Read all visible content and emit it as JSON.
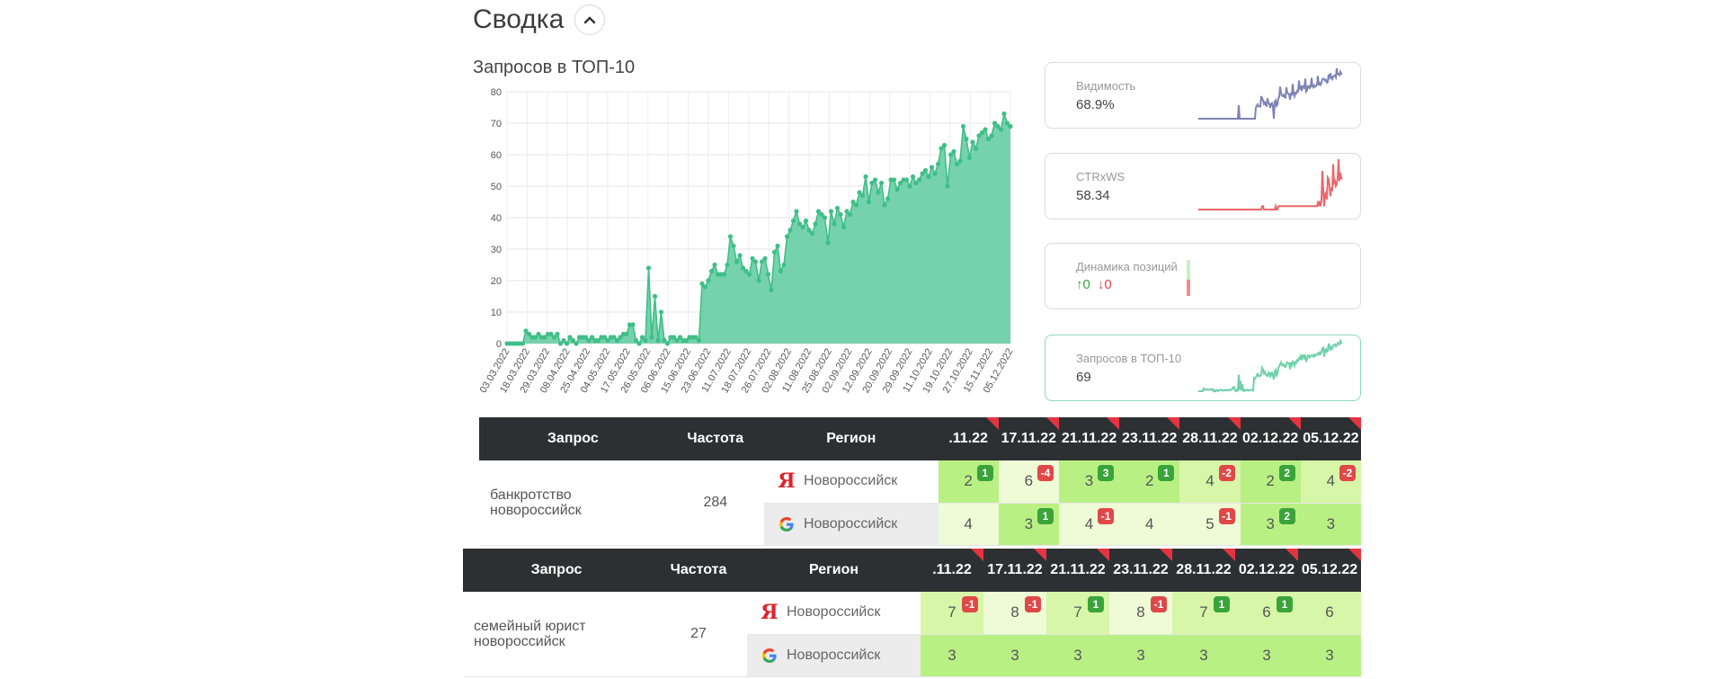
{
  "summary": {
    "title": "Сводка"
  },
  "chart_data": {
    "type": "area",
    "title": "Запросов в ТОП-10",
    "ylim": [
      0,
      80
    ],
    "yticks": [
      0,
      10,
      20,
      30,
      40,
      50,
      60,
      70,
      80
    ],
    "xticks": [
      "03.03.2022",
      "18.03.2022",
      "29.03.2022",
      "08.04.2022",
      "25.04.2022",
      "04.05.2022",
      "17.05.2022",
      "26.05.2022",
      "06.06.2022",
      "15.06.2022",
      "23.06.2022",
      "11.07.2022",
      "18.07.2022",
      "26.07.2022",
      "02.08.2022",
      "11.08.2022",
      "25.08.2022",
      "02.09.2022",
      "12.09.2022",
      "20.09.2022",
      "29.09.2022",
      "11.10.2022",
      "19.10.2022",
      "27.10.2022",
      "15.11.2022",
      "05.12.2022"
    ],
    "values": [
      0,
      0,
      0,
      0,
      0,
      0,
      4,
      3,
      2,
      2,
      3,
      2,
      2,
      3,
      3,
      2,
      3,
      0,
      1,
      0,
      2,
      1,
      0,
      2,
      2,
      2,
      1,
      2,
      1,
      1,
      2,
      2,
      1,
      2,
      2,
      1,
      2,
      3,
      3,
      6,
      6,
      1,
      0,
      2,
      1,
      24,
      2,
      15,
      1,
      10,
      1,
      0,
      2,
      2,
      1,
      2,
      1,
      1,
      2,
      2,
      2,
      1,
      19,
      18,
      20,
      23,
      25,
      22,
      22,
      22,
      25,
      34,
      31,
      26,
      28,
      24,
      23,
      22,
      27,
      26,
      20,
      26,
      27,
      22,
      17,
      29,
      31,
      23,
      25,
      34,
      36,
      39,
      42,
      38,
      37,
      39,
      36,
      35,
      38,
      42,
      41,
      40,
      32,
      42,
      38,
      43,
      41,
      37,
      42,
      41,
      45,
      44,
      48,
      47,
      53,
      45,
      51,
      52,
      48,
      51,
      44,
      46,
      52,
      52,
      49,
      51,
      52,
      52,
      50,
      53,
      51,
      52,
      54,
      55,
      53,
      56,
      54,
      57,
      62,
      63,
      50,
      60,
      61,
      57,
      58,
      69,
      65,
      59,
      64,
      62,
      66,
      67,
      68,
      65,
      66,
      70,
      69,
      68,
      73,
      70,
      69
    ]
  },
  "cards": [
    {
      "label": "Видимость",
      "value": "68.9%",
      "color": "#7e83b3"
    },
    {
      "label": "CTRxWS",
      "value": "58.34",
      "color": "#e8686a"
    },
    {
      "label": "Динамика позиций",
      "up": "↑0",
      "down": "↓0"
    },
    {
      "label": "Запросов в ТОП-10",
      "value": "69",
      "color": "#6fd0a9"
    }
  ],
  "tables": [
    {
      "headers": {
        "query": "Запрос",
        "frequency": "Частота",
        "region": "Регион"
      },
      "dates": [
        ".11.22",
        "17.11.22",
        "21.11.22",
        "23.11.22",
        "28.11.22",
        "02.12.22",
        "05.12.22"
      ],
      "query": "банкротство новороссийск",
      "frequency": "284",
      "rows": [
        {
          "engine": "yandex",
          "region": "Новороссийск",
          "cells": [
            {
              "v": "2",
              "b": "1",
              "t": "up",
              "bg": "a"
            },
            {
              "v": "6",
              "b": "-4",
              "t": "dn",
              "bg": "c"
            },
            {
              "v": "3",
              "b": "3",
              "t": "up",
              "bg": "a"
            },
            {
              "v": "2",
              "b": "1",
              "t": "up",
              "bg": "a"
            },
            {
              "v": "4",
              "b": "-2",
              "t": "dn",
              "bg": "b"
            },
            {
              "v": "2",
              "b": "2",
              "t": "up",
              "bg": "a"
            },
            {
              "v": "4",
              "b": "-2",
              "t": "dn",
              "bg": "b"
            }
          ]
        },
        {
          "engine": "google",
          "region": "Новороссийск",
          "cells": [
            {
              "v": "4",
              "b": "",
              "t": "",
              "bg": "c"
            },
            {
              "v": "3",
              "b": "1",
              "t": "up",
              "bg": "a"
            },
            {
              "v": "4",
              "b": "-1",
              "t": "dn",
              "bg": "c"
            },
            {
              "v": "4",
              "b": "",
              "t": "",
              "bg": "c"
            },
            {
              "v": "5",
              "b": "-1",
              "t": "dn",
              "bg": "c"
            },
            {
              "v": "3",
              "b": "2",
              "t": "up",
              "bg": "a"
            },
            {
              "v": "3",
              "b": "",
              "t": "",
              "bg": "a"
            }
          ]
        }
      ]
    },
    {
      "headers": {
        "query": "Запрос",
        "frequency": "Частота",
        "region": "Регион"
      },
      "dates": [
        ".11.22",
        "17.11.22",
        "21.11.22",
        "23.11.22",
        "28.11.22",
        "02.12.22",
        "05.12.22"
      ],
      "query": "семейный юрист новороссийск",
      "frequency": "27",
      "rows": [
        {
          "engine": "yandex",
          "region": "Новороссийск",
          "cells": [
            {
              "v": "7",
              "b": "-1",
              "t": "dn",
              "bg": "b"
            },
            {
              "v": "8",
              "b": "-1",
              "t": "dn",
              "bg": "c"
            },
            {
              "v": "7",
              "b": "1",
              "t": "up",
              "bg": "b"
            },
            {
              "v": "8",
              "b": "-1",
              "t": "dn",
              "bg": "c"
            },
            {
              "v": "7",
              "b": "1",
              "t": "up",
              "bg": "b"
            },
            {
              "v": "6",
              "b": "1",
              "t": "up",
              "bg": "b"
            },
            {
              "v": "6",
              "b": "",
              "t": "",
              "bg": "b"
            }
          ]
        },
        {
          "engine": "google",
          "region": "Новороссийск",
          "cells": [
            {
              "v": "3",
              "b": "",
              "t": "",
              "bg": "a"
            },
            {
              "v": "3",
              "b": "",
              "t": "",
              "bg": "a"
            },
            {
              "v": "3",
              "b": "",
              "t": "",
              "bg": "a"
            },
            {
              "v": "3",
              "b": "",
              "t": "",
              "bg": "a"
            },
            {
              "v": "3",
              "b": "",
              "t": "",
              "bg": "a"
            },
            {
              "v": "3",
              "b": "",
              "t": "",
              "bg": "a"
            },
            {
              "v": "3",
              "b": "",
              "t": "",
              "bg": "a"
            }
          ]
        }
      ]
    }
  ]
}
